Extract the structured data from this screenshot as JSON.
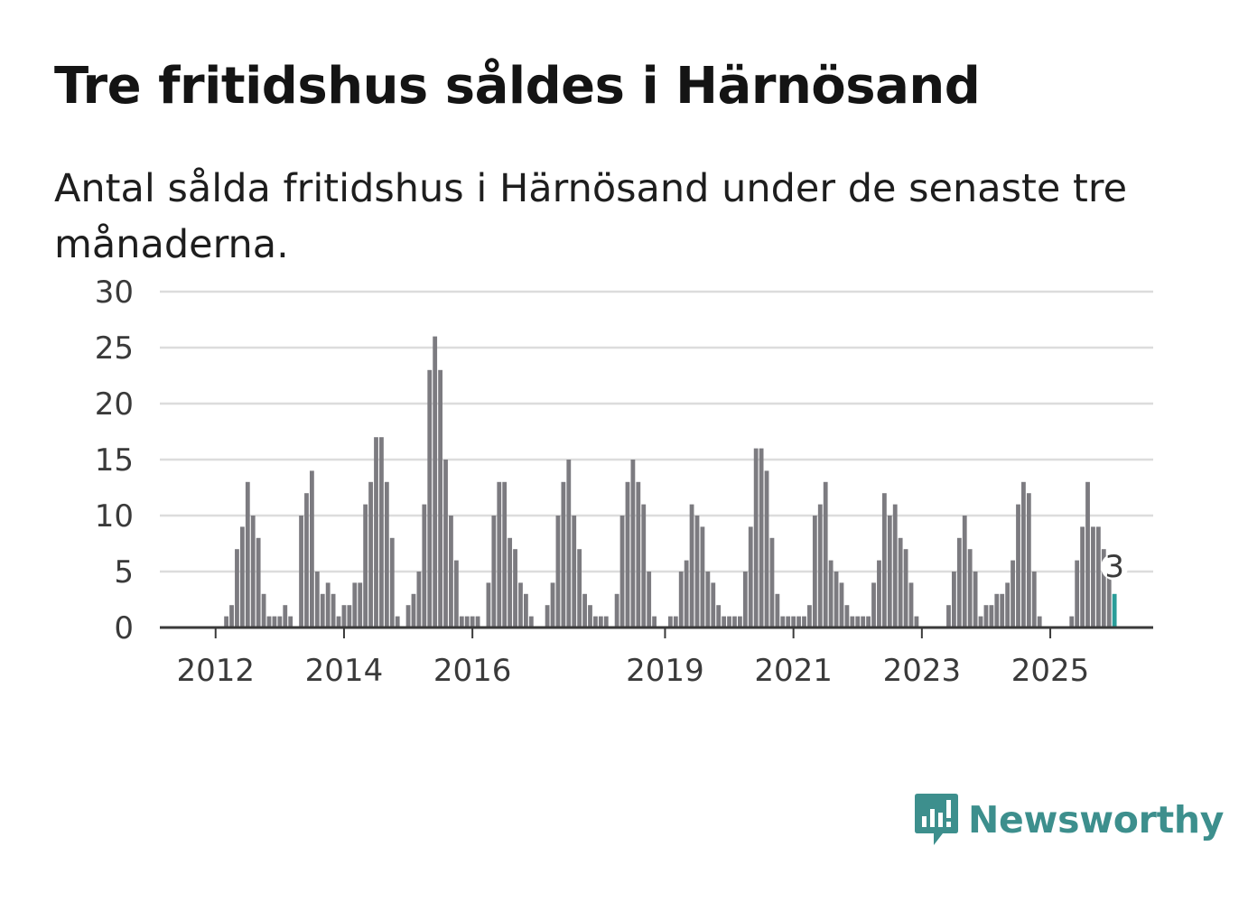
{
  "title": "Tre fritidshus såldes i Härnösand",
  "subtitle": "Antal sålda fritidshus i Härnösand under de senaste tre månaderna.",
  "brand": "Newsworthy",
  "colors": {
    "bar": "#7c7b80",
    "highlight": "#2a9d99",
    "grid": "#dcdcdc",
    "axis": "#3a3a3a",
    "brand": "#3d8f8d"
  },
  "chart_data": {
    "type": "bar",
    "ylim": [
      0,
      30
    ],
    "yticks": [
      0,
      5,
      10,
      15,
      20,
      25,
      30
    ],
    "x_tick_labels": [
      "2012",
      "2014",
      "2016",
      "2019",
      "2021",
      "2023",
      "2025"
    ],
    "x_ticks": [
      "2012-01",
      "2014-01",
      "2016-01",
      "2019-01",
      "2021-01",
      "2023-01",
      "2025-01"
    ],
    "start": "2011-03",
    "grid": true,
    "highlight_label": "3",
    "values": [
      0,
      0,
      0,
      0,
      0,
      0,
      0,
      0,
      0,
      0,
      0,
      0,
      1,
      2,
      7,
      9,
      13,
      10,
      8,
      3,
      1,
      1,
      1,
      2,
      1,
      0,
      10,
      12,
      14,
      5,
      3,
      4,
      3,
      1,
      2,
      2,
      4,
      4,
      11,
      13,
      17,
      17,
      13,
      8,
      1,
      0,
      2,
      3,
      5,
      11,
      23,
      26,
      23,
      15,
      10,
      6,
      1,
      1,
      1,
      1,
      0,
      4,
      10,
      13,
      13,
      8,
      7,
      4,
      3,
      1,
      0,
      0,
      2,
      4,
      10,
      13,
      15,
      10,
      7,
      3,
      2,
      1,
      1,
      1,
      0,
      3,
      10,
      13,
      15,
      13,
      11,
      5,
      1,
      0,
      0,
      1,
      1,
      5,
      6,
      11,
      10,
      9,
      5,
      4,
      2,
      1,
      1,
      1,
      1,
      5,
      9,
      16,
      16,
      14,
      8,
      3,
      1,
      1,
      1,
      1,
      1,
      2,
      10,
      11,
      13,
      6,
      5,
      4,
      2,
      1,
      1,
      1,
      1,
      4,
      6,
      12,
      10,
      11,
      8,
      7,
      4,
      1,
      0,
      0,
      0,
      0,
      0,
      2,
      5,
      8,
      10,
      7,
      5,
      1,
      2,
      2,
      3,
      3,
      4,
      6,
      11,
      13,
      12,
      5,
      1,
      0,
      0,
      0,
      0,
      0,
      1,
      6,
      9,
      13,
      9,
      9,
      7,
      5,
      3
    ]
  }
}
